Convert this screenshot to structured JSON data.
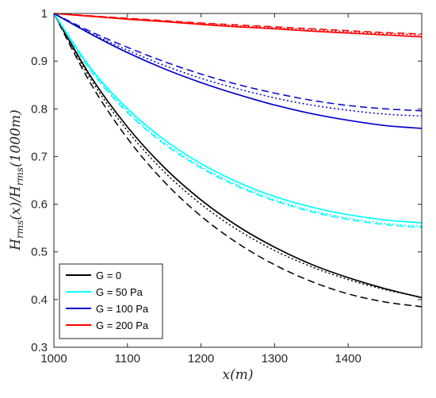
{
  "chart_data": {
    "type": "line",
    "xlabel": "x(m)",
    "ylabel": "H_rms(x)/H_rms(1000m)",
    "xlim": [
      1000,
      1500
    ],
    "ylim": [
      0.3,
      1.0
    ],
    "x_ticks": [
      1000,
      1100,
      1200,
      1300,
      1400
    ],
    "y_ticks": [
      0.3,
      0.4,
      0.5,
      0.6,
      0.7,
      0.8,
      0.9,
      1.0
    ],
    "x_tick_labels": [
      "1000",
      "1100",
      "1200",
      "1300",
      "1400"
    ],
    "y_tick_labels": [
      "0.3",
      "0.4",
      "0.5",
      "0.6",
      "0.7",
      "0.8",
      "0.9",
      "1"
    ],
    "grid": false,
    "legend_position": "bottom-left",
    "line_styles": [
      "solid",
      "dashed",
      "dotted"
    ],
    "x": [
      1000,
      1050,
      1100,
      1150,
      1200,
      1250,
      1300,
      1350,
      1400,
      1450,
      1500
    ],
    "series": [
      {
        "name": "G = 0",
        "color": "#000000",
        "style": "solid",
        "values": [
          1.0,
          0.868,
          0.762,
          0.677,
          0.609,
          0.554,
          0.51,
          0.474,
          0.446,
          0.423,
          0.404
        ]
      },
      {
        "color": "#000000",
        "style": "dashed",
        "values": [
          1.0,
          0.853,
          0.738,
          0.647,
          0.575,
          0.518,
          0.473,
          0.438,
          0.412,
          0.395,
          0.385
        ]
      },
      {
        "color": "#000000",
        "style": "dotted",
        "values": [
          1.0,
          0.862,
          0.754,
          0.668,
          0.6,
          0.546,
          0.503,
          0.469,
          0.442,
          0.421,
          0.405
        ]
      },
      {
        "name": "G = 50 Pa",
        "color": "#00FFFF",
        "style": "solid",
        "values": [
          1.0,
          0.885,
          0.8,
          0.735,
          0.685,
          0.646,
          0.616,
          0.594,
          0.578,
          0.567,
          0.561
        ]
      },
      {
        "color": "#00FFFF",
        "style": "dashed",
        "values": [
          1.0,
          0.88,
          0.792,
          0.726,
          0.676,
          0.637,
          0.607,
          0.584,
          0.568,
          0.557,
          0.551
        ]
      },
      {
        "color": "#00FFFF",
        "style": "dotted",
        "values": [
          1.0,
          0.882,
          0.795,
          0.729,
          0.679,
          0.64,
          0.61,
          0.587,
          0.571,
          0.56,
          0.554
        ]
      },
      {
        "name": "G = 100 Pa",
        "color": "#0000CD",
        "style": "solid",
        "values": [
          1.0,
          0.957,
          0.918,
          0.884,
          0.855,
          0.83,
          0.808,
          0.79,
          0.776,
          0.765,
          0.759
        ]
      },
      {
        "color": "#0000CD",
        "style": "dashed",
        "values": [
          1.0,
          0.962,
          0.929,
          0.899,
          0.873,
          0.851,
          0.833,
          0.818,
          0.807,
          0.8,
          0.796
        ]
      },
      {
        "color": "#0000CD",
        "style": "dotted",
        "values": [
          1.0,
          0.959,
          0.923,
          0.891,
          0.864,
          0.842,
          0.823,
          0.808,
          0.797,
          0.789,
          0.785
        ]
      },
      {
        "name": "G = 200 Pa",
        "color": "#FF0000",
        "style": "solid",
        "values": [
          1.0,
          0.994,
          0.988,
          0.983,
          0.977,
          0.972,
          0.968,
          0.963,
          0.959,
          0.955,
          0.951
        ]
      },
      {
        "color": "#FF0000",
        "style": "dashed",
        "values": [
          1.0,
          0.995,
          0.99,
          0.985,
          0.98,
          0.976,
          0.972,
          0.968,
          0.964,
          0.96,
          0.957
        ]
      },
      {
        "color": "#FF0000",
        "style": "dotted",
        "values": [
          1.0,
          0.995,
          0.989,
          0.984,
          0.979,
          0.974,
          0.97,
          0.966,
          0.962,
          0.958,
          0.955
        ]
      }
    ]
  }
}
